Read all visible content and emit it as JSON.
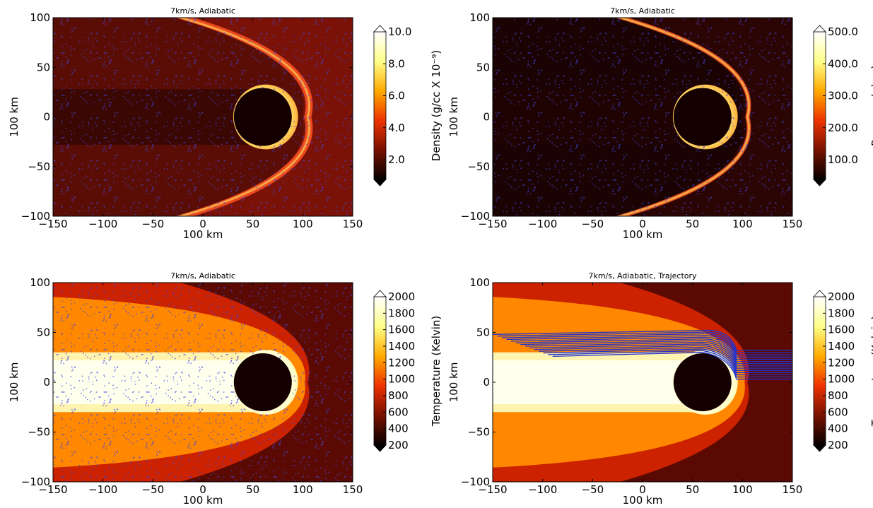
{
  "chart_data": [
    {
      "type": "heatmap",
      "title": "7km/s, Adiabatic",
      "xlabel": "100 km",
      "ylabel": "100 km",
      "xlim": [
        -150,
        150
      ],
      "ylim": [
        -100,
        100
      ],
      "x_ticks": [
        "−150",
        "−100",
        "−50",
        "0",
        "50",
        "100",
        "150"
      ],
      "y_ticks": [
        "−100",
        "−50",
        "0",
        "50",
        "100"
      ],
      "colorbar": {
        "label": "Density (g/cc X 10⁻⁹)",
        "ticks": [
          "10.0",
          "8.0",
          "6.0",
          "4.0",
          "2.0"
        ],
        "colormap": "afmhot",
        "extend": "both"
      },
      "field": "density",
      "obstacle": {
        "center_x": 60,
        "center_y": 0,
        "radius": 29
      },
      "particles_color": "#4444dd"
    },
    {
      "type": "heatmap",
      "title": "7km/s, Adiabatic",
      "xlabel": "100 km",
      "ylabel": "100 km",
      "xlim": [
        -150,
        150
      ],
      "ylim": [
        -100,
        100
      ],
      "x_ticks": [
        "−150",
        "−100",
        "−50",
        "0",
        "50",
        "100",
        "150"
      ],
      "y_ticks": [
        "−100",
        "−50",
        "0",
        "50",
        "100"
      ],
      "colorbar": {
        "label": "Pressure (μbar)",
        "ticks": [
          "500.0",
          "400.0",
          "300.0",
          "200.0",
          "100.0"
        ],
        "colormap": "afmhot",
        "extend": "both"
      },
      "field": "pressure",
      "obstacle": {
        "center_x": 60,
        "center_y": 0,
        "radius": 29
      },
      "particles_color": "#4444dd"
    },
    {
      "type": "heatmap",
      "title": "7km/s, Adiabatic",
      "xlabel": "100 km",
      "ylabel": "100 km",
      "xlim": [
        -150,
        150
      ],
      "ylim": [
        -100,
        100
      ],
      "x_ticks": [
        "−150",
        "−100",
        "−50",
        "0",
        "50",
        "100",
        "150"
      ],
      "y_ticks": [
        "−100",
        "−50",
        "0",
        "50",
        "100"
      ],
      "colorbar": {
        "label": "Temperature (Kelvin)",
        "ticks": [
          "2000",
          "1800",
          "1600",
          "1400",
          "1200",
          "1000",
          "800",
          "600",
          "400",
          "200"
        ],
        "colormap": "afmhot",
        "extend": "both"
      },
      "field": "temperature",
      "obstacle": {
        "center_x": 60,
        "center_y": 0,
        "radius": 29
      },
      "particles_color": "#4444dd"
    },
    {
      "type": "heatmap",
      "title": "7km/s, Adiabatic, Trajectory",
      "xlabel": "100 km",
      "ylabel": "100 km",
      "xlim": [
        -150,
        150
      ],
      "ylim": [
        -100,
        100
      ],
      "x_ticks": [
        "−150",
        "−100",
        "−50",
        "0",
        "50",
        "100",
        "150"
      ],
      "y_ticks": [
        "−100",
        "−50",
        "0",
        "50",
        "100"
      ],
      "colorbar": {
        "label": "Temperature (Kelvin)",
        "ticks": [
          "2000",
          "1800",
          "1600",
          "1400",
          "1200",
          "1000",
          "800",
          "600",
          "400",
          "200"
        ],
        "colormap": "afmhot",
        "extend": "both"
      },
      "field": "temperature",
      "obstacle": {
        "center_x": 60,
        "center_y": 0,
        "radius": 29
      },
      "trajectories": {
        "color": "#2233cc",
        "start_x": 150,
        "start_y_range": [
          3,
          32
        ],
        "count": 14,
        "end_x_range": [
          -150,
          -90
        ],
        "end_y_range": [
          26,
          48
        ]
      }
    }
  ]
}
